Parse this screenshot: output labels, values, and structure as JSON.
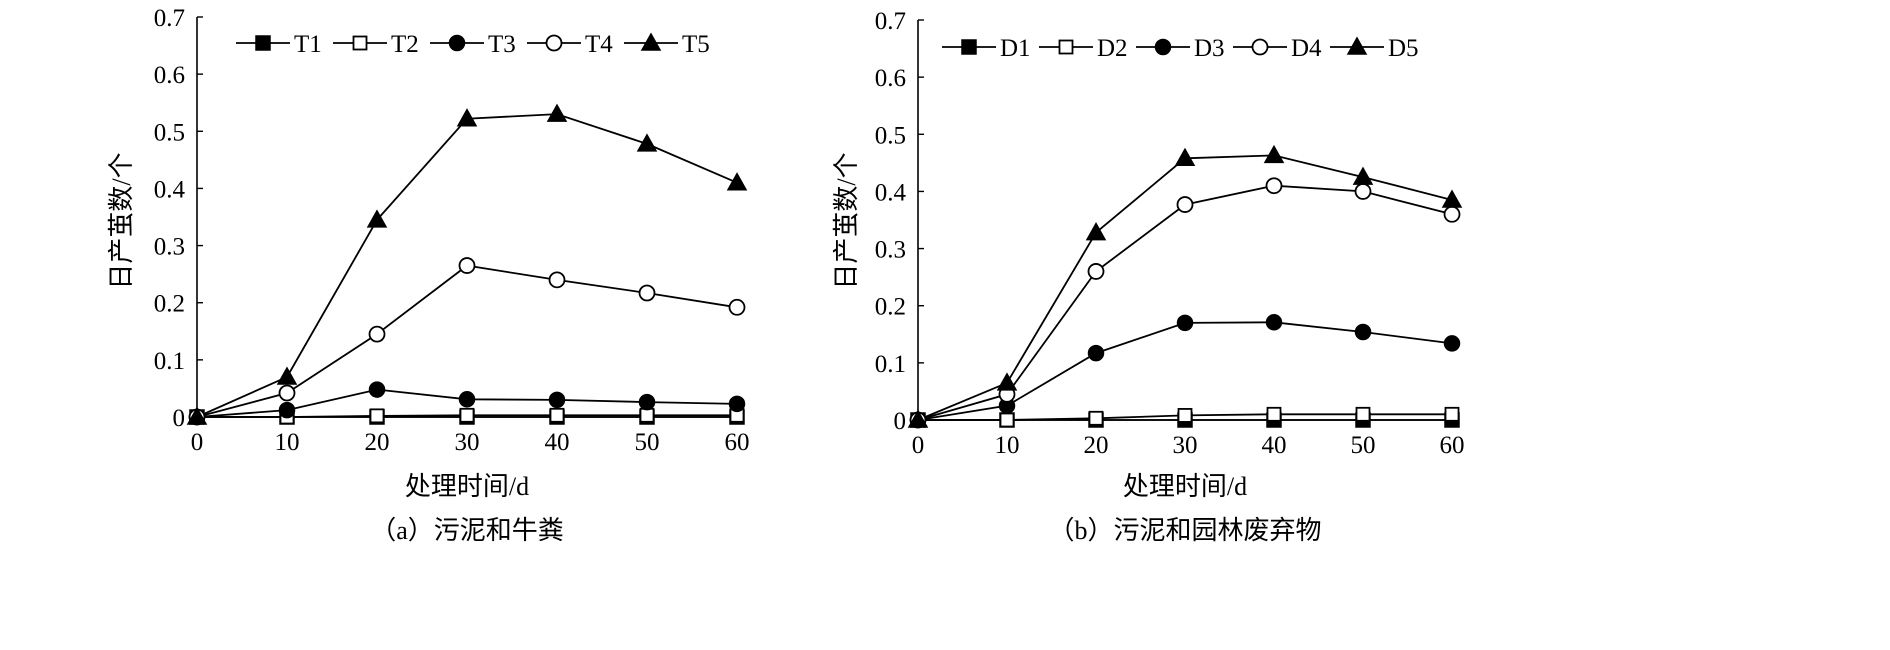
{
  "charts": [
    {
      "caption": "（a）污泥和牛粪",
      "ylabel": "日产茧数/个",
      "xlabel": "处理时间/d",
      "legend_labels": [
        "T1",
        "T2",
        "T3",
        "T4",
        "T5"
      ]
    },
    {
      "caption": "（b）污泥和园林废弃物",
      "ylabel": "日产茧数/个",
      "xlabel": "处理时间/d",
      "legend_labels": [
        "D1",
        "D2",
        "D3",
        "D4",
        "D5"
      ]
    }
  ],
  "chart_data": [
    {
      "type": "line",
      "title": "",
      "xlabel": "处理时间/d",
      "ylabel": "日产茧数/个",
      "x": [
        0,
        10,
        20,
        30,
        40,
        50,
        60
      ],
      "xlim": [
        0,
        60
      ],
      "ylim": [
        0,
        0.7
      ],
      "xticks": [
        "0",
        "10",
        "20",
        "30",
        "40",
        "50",
        "60"
      ],
      "yticks": [
        "0",
        "0.1",
        "0.2",
        "0.3",
        "0.4",
        "0.5",
        "0.6",
        "0.7"
      ],
      "grid": false,
      "legend_position": "top",
      "series": [
        {
          "name": "T1",
          "marker": "filled-square",
          "values": [
            0,
            0,
            0,
            0,
            0,
            0,
            0
          ]
        },
        {
          "name": "T2",
          "marker": "open-square",
          "values": [
            0,
            0,
            0.002,
            0.003,
            0.003,
            0.003,
            0.003
          ]
        },
        {
          "name": "T3",
          "marker": "filled-circle",
          "values": [
            0,
            0.012,
            0.048,
            0.031,
            0.03,
            0.026,
            0.023
          ]
        },
        {
          "name": "T4",
          "marker": "open-circle",
          "values": [
            0,
            0.042,
            0.145,
            0.265,
            0.24,
            0.217,
            0.192
          ]
        },
        {
          "name": "T5",
          "marker": "filled-triangle",
          "values": [
            0,
            0.07,
            0.345,
            0.522,
            0.53,
            0.478,
            0.41
          ]
        }
      ]
    },
    {
      "type": "line",
      "title": "",
      "xlabel": "处理时间/d",
      "ylabel": "日产茧数/个",
      "x": [
        0,
        10,
        20,
        30,
        40,
        50,
        60
      ],
      "xlim": [
        0,
        60
      ],
      "ylim": [
        0,
        0.7
      ],
      "xticks": [
        "0",
        "10",
        "20",
        "30",
        "40",
        "50",
        "60"
      ],
      "yticks": [
        "0",
        "0.1",
        "0.2",
        "0.3",
        "0.4",
        "0.5",
        "0.6",
        "0.7"
      ],
      "grid": false,
      "legend_position": "top",
      "series": [
        {
          "name": "D1",
          "marker": "filled-square",
          "values": [
            0,
            0,
            0,
            0,
            0,
            0,
            0
          ]
        },
        {
          "name": "D2",
          "marker": "open-square",
          "values": [
            0,
            0,
            0.003,
            0.008,
            0.01,
            0.01,
            0.01
          ]
        },
        {
          "name": "D3",
          "marker": "filled-circle",
          "values": [
            0,
            0.025,
            0.117,
            0.17,
            0.171,
            0.154,
            0.134
          ]
        },
        {
          "name": "D4",
          "marker": "open-circle",
          "values": [
            0,
            0.045,
            0.26,
            0.377,
            0.41,
            0.4,
            0.36
          ]
        },
        {
          "name": "D5",
          "marker": "filled-triangle",
          "values": [
            0,
            0.065,
            0.328,
            0.458,
            0.463,
            0.425,
            0.385
          ]
        }
      ]
    }
  ]
}
